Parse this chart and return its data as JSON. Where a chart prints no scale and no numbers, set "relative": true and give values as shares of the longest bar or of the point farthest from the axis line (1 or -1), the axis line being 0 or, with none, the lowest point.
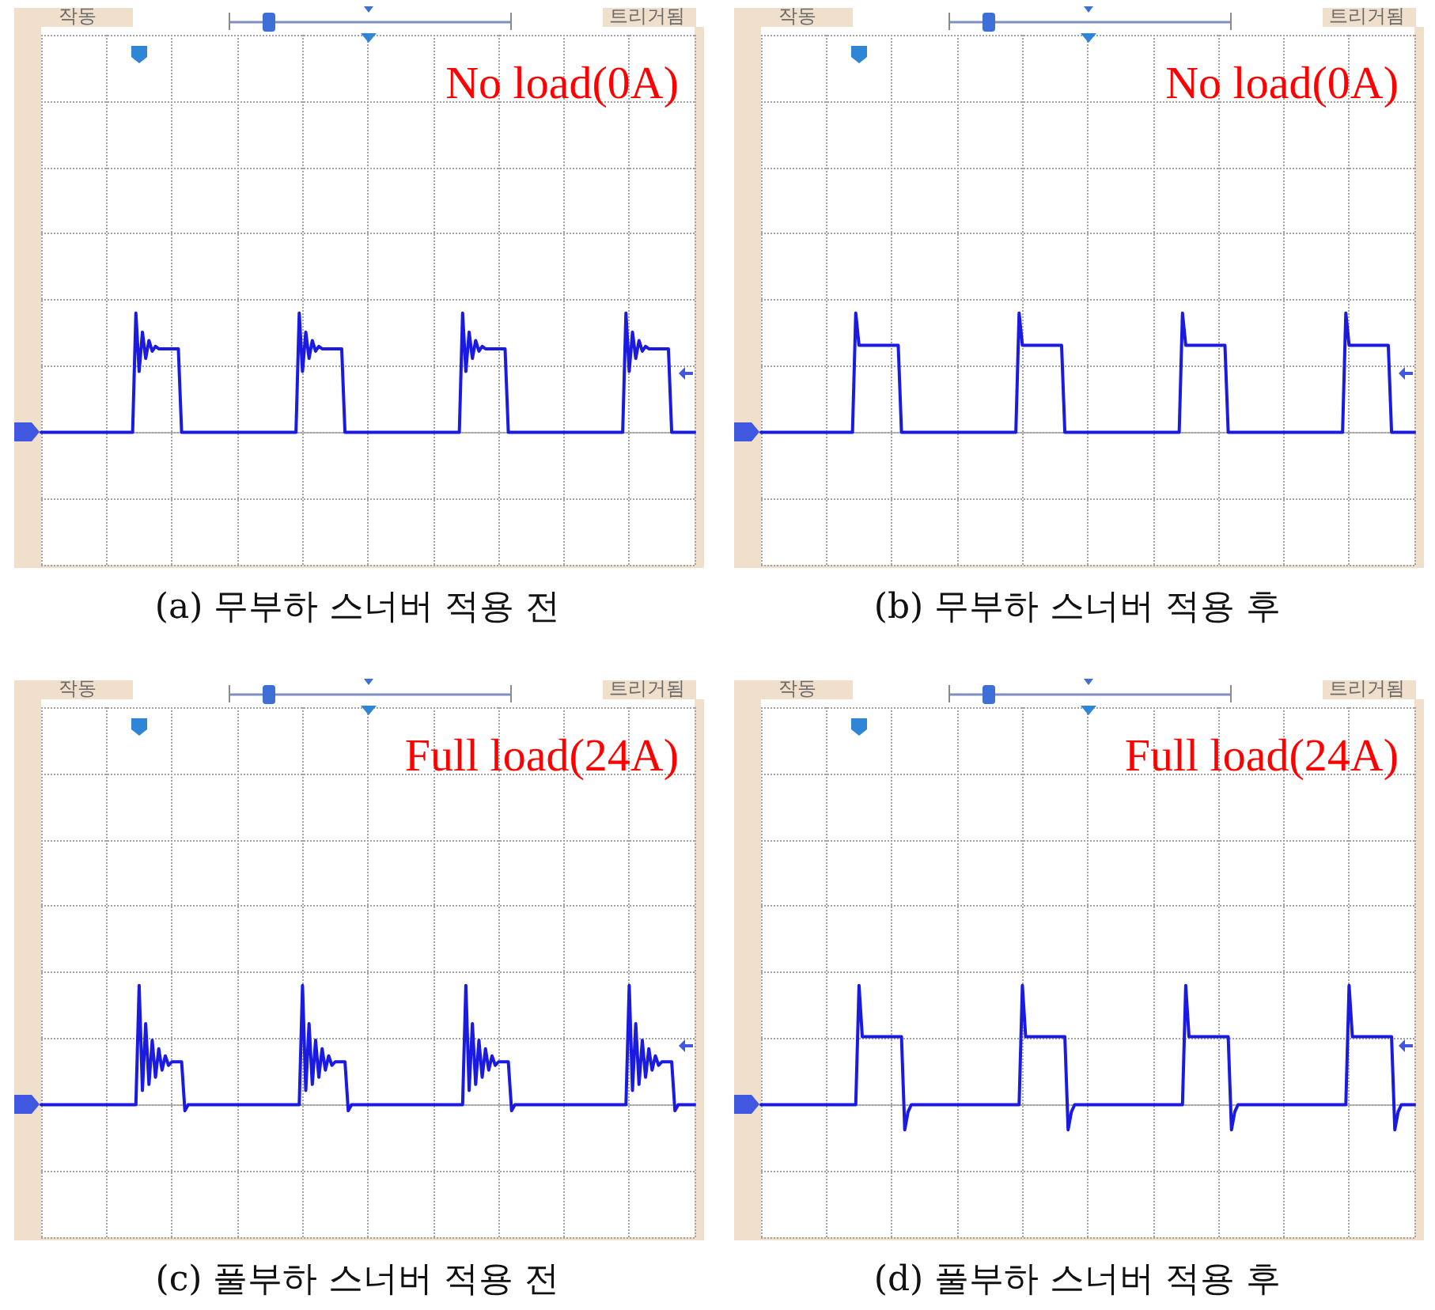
{
  "chart_data": [
    {
      "type": "line",
      "title": "(a) 무부하 스너버 적용 전",
      "annotations": [
        "작동",
        "트리거됨",
        "No load(0A)"
      ],
      "relative": true,
      "grid": true,
      "color": "#1a1ae0",
      "categories": [
        null,
        null,
        null,
        null,
        null,
        null,
        null,
        null,
        null,
        null,
        null,
        null,
        null,
        null,
        null,
        null,
        null,
        null,
        null,
        null,
        null,
        null,
        null,
        null,
        null,
        null,
        null,
        null,
        null,
        null,
        null,
        null,
        null,
        null,
        null,
        null,
        null,
        null,
        null,
        null,
        null,
        null,
        null,
        null,
        null,
        null,
        null,
        null,
        null,
        null,
        null,
        null,
        null,
        null,
        null,
        null,
        null,
        null,
        null,
        null,
        null,
        null,
        null,
        null,
        null,
        null,
        null,
        null,
        null,
        null,
        null,
        null,
        null,
        null,
        null,
        null,
        null,
        null,
        null,
        null,
        null,
        null,
        null,
        null,
        null,
        null,
        null,
        null,
        null,
        null,
        null,
        null,
        null,
        null,
        null,
        null,
        null,
        null,
        null,
        null,
        null,
        null,
        null,
        null,
        null,
        null,
        null,
        null,
        null,
        null,
        null,
        null,
        null,
        null,
        null,
        null,
        null,
        null,
        null,
        null,
        null,
        null,
        null,
        null,
        null,
        null,
        null,
        null,
        null,
        null,
        null,
        null,
        null,
        null,
        null,
        null,
        null,
        null,
        null,
        null,
        null,
        null,
        null,
        null,
        null,
        null,
        null,
        null,
        null,
        null,
        null,
        null,
        null,
        null,
        null,
        null,
        null,
        null,
        null,
        null,
        null,
        null,
        null,
        null,
        null,
        null,
        null,
        null,
        null,
        null,
        null,
        null,
        null,
        null,
        null,
        null,
        null,
        null,
        null,
        null,
        null,
        null,
        null,
        null,
        null,
        null,
        null,
        null,
        null,
        null,
        null,
        null,
        null,
        null,
        null,
        null,
        null,
        null,
        null,
        null,
        null
      ],
      "values": [
        0,
        0,
        0,
        0,
        0,
        0,
        0,
        0,
        0,
        0,
        0,
        0,
        0,
        0,
        0,
        0,
        0,
        0,
        0,
        0,
        0,
        0,
        0,
        0,
        0,
        0,
        0,
        0,
        0,
        1,
        0.51,
        0.84,
        0.62,
        0.77,
        0.68,
        0.72,
        0.7,
        0.7,
        0.7,
        0.7,
        0.7,
        0.7,
        0.7,
        0,
        0,
        0,
        0,
        0,
        0,
        0,
        0,
        0,
        0,
        0,
        0,
        0,
        0,
        0,
        0,
        0,
        0,
        0,
        0,
        0,
        0,
        0,
        0,
        0,
        0,
        0,
        0,
        0,
        0,
        0,
        0,
        0,
        0,
        0,
        0,
        1,
        0.51,
        0.84,
        0.62,
        0.77,
        0.68,
        0.72,
        0.7,
        0.7,
        0.7,
        0.7,
        0.7,
        0.7,
        0.7,
        0,
        0,
        0,
        0,
        0,
        0,
        0,
        0,
        0,
        0,
        0,
        0,
        0,
        0,
        0,
        0,
        0,
        0,
        0,
        0,
        0,
        0,
        0,
        0,
        0,
        0,
        0,
        0,
        0,
        0,
        0,
        0,
        0,
        0,
        0,
        0,
        1,
        0.51,
        0.84,
        0.62,
        0.77,
        0.68,
        0.72,
        0.7,
        0.7,
        0.7,
        0.7,
        0.7,
        0.7,
        0.7,
        0,
        0,
        0,
        0,
        0,
        0,
        0,
        0,
        0,
        0,
        0,
        0,
        0,
        0,
        0,
        0,
        0,
        0,
        0,
        0,
        0,
        0,
        0,
        0,
        0,
        0,
        0,
        0,
        0,
        0,
        0,
        0,
        0,
        0,
        0,
        0,
        1,
        0.51,
        0.84,
        0.62,
        0.77,
        0.68,
        0.72,
        0.7,
        0.7,
        0.7,
        0.7,
        0.7,
        0.7,
        0.7,
        0,
        0,
        0,
        0,
        0,
        0,
        0,
        0
      ]
    },
    {
      "type": "line",
      "title": "(b) 무부하 스너버 적용 후",
      "annotations": [
        "작동",
        "트리거됨",
        "No load(0A)"
      ],
      "relative": true,
      "grid": true,
      "color": "#1a1ae0",
      "categories": [
        null,
        null,
        null,
        null,
        null,
        null,
        null,
        null,
        null,
        null,
        null,
        null,
        null,
        null,
        null,
        null,
        null,
        null,
        null,
        null,
        null,
        null,
        null,
        null,
        null,
        null,
        null,
        null,
        null,
        null,
        null,
        null,
        null,
        null,
        null,
        null,
        null,
        null,
        null,
        null,
        null,
        null,
        null,
        null,
        null,
        null,
        null,
        null,
        null,
        null,
        null,
        null,
        null,
        null,
        null,
        null,
        null,
        null,
        null,
        null,
        null,
        null,
        null,
        null,
        null,
        null,
        null,
        null,
        null,
        null,
        null,
        null,
        null,
        null,
        null,
        null,
        null,
        null,
        null,
        null,
        null,
        null,
        null,
        null,
        null,
        null,
        null,
        null,
        null,
        null,
        null,
        null,
        null,
        null,
        null,
        null,
        null,
        null,
        null,
        null,
        null,
        null,
        null,
        null,
        null,
        null,
        null,
        null,
        null,
        null,
        null,
        null,
        null,
        null,
        null,
        null,
        null,
        null,
        null,
        null,
        null,
        null,
        null,
        null,
        null,
        null,
        null,
        null,
        null,
        null,
        null,
        null,
        null,
        null,
        null,
        null,
        null,
        null,
        null,
        null,
        null,
        null,
        null,
        null,
        null,
        null,
        null,
        null,
        null,
        null,
        null,
        null,
        null,
        null,
        null,
        null,
        null,
        null,
        null,
        null,
        null,
        null,
        null,
        null,
        null,
        null,
        null,
        null,
        null,
        null,
        null,
        null,
        null,
        null,
        null,
        null,
        null,
        null,
        null,
        null,
        null,
        null,
        null,
        null,
        null,
        null,
        null,
        null,
        null,
        null,
        null,
        null,
        null,
        null,
        null,
        null,
        null,
        null,
        null,
        null,
        null
      ],
      "values": [
        0,
        0,
        0,
        0,
        0,
        0,
        0,
        0,
        0,
        0,
        0,
        0,
        0,
        0,
        0,
        0,
        0,
        0,
        0,
        0,
        0,
        0,
        0,
        0,
        0,
        0,
        0,
        0,
        0,
        1,
        0.73,
        0.73,
        0.73,
        0.73,
        0.73,
        0.73,
        0.73,
        0.73,
        0.73,
        0.73,
        0.73,
        0.73,
        0.73,
        0,
        0,
        0,
        0,
        0,
        0,
        0,
        0,
        0,
        0,
        0,
        0,
        0,
        0,
        0,
        0,
        0,
        0,
        0,
        0,
        0,
        0,
        0,
        0,
        0,
        0,
        0,
        0,
        0,
        0,
        0,
        0,
        0,
        0,
        0,
        0,
        1,
        0.73,
        0.73,
        0.73,
        0.73,
        0.73,
        0.73,
        0.73,
        0.73,
        0.73,
        0.73,
        0.73,
        0.73,
        0.73,
        0,
        0,
        0,
        0,
        0,
        0,
        0,
        0,
        0,
        0,
        0,
        0,
        0,
        0,
        0,
        0,
        0,
        0,
        0,
        0,
        0,
        0,
        0,
        0,
        0,
        0,
        0,
        0,
        0,
        0,
        0,
        0,
        0,
        0,
        0,
        0,
        1,
        0.73,
        0.73,
        0.73,
        0.73,
        0.73,
        0.73,
        0.73,
        0.73,
        0.73,
        0.73,
        0.73,
        0.73,
        0.73,
        0,
        0,
        0,
        0,
        0,
        0,
        0,
        0,
        0,
        0,
        0,
        0,
        0,
        0,
        0,
        0,
        0,
        0,
        0,
        0,
        0,
        0,
        0,
        0,
        0,
        0,
        0,
        0,
        0,
        0,
        0,
        0,
        0,
        0,
        0,
        0,
        1,
        0.73,
        0.73,
        0.73,
        0.73,
        0.73,
        0.73,
        0.73,
        0.73,
        0.73,
        0.73,
        0.73,
        0.73,
        0.73,
        0,
        0,
        0,
        0,
        0,
        0,
        0,
        0
      ]
    },
    {
      "type": "line",
      "title": "(c) 풀부하 스너버 적용 전",
      "annotations": [
        "작동",
        "트리거됨",
        "Full load(24A)"
      ],
      "relative": true,
      "grid": true,
      "color": "#1a1ae0",
      "categories": [
        null,
        null,
        null,
        null,
        null,
        null,
        null,
        null,
        null,
        null,
        null,
        null,
        null,
        null,
        null,
        null,
        null,
        null,
        null,
        null,
        null,
        null,
        null,
        null,
        null,
        null,
        null,
        null,
        null,
        null,
        null,
        null,
        null,
        null,
        null,
        null,
        null,
        null,
        null,
        null,
        null,
        null,
        null,
        null,
        null,
        null,
        null,
        null,
        null,
        null,
        null,
        null,
        null,
        null,
        null,
        null,
        null,
        null,
        null,
        null,
        null,
        null,
        null,
        null,
        null,
        null,
        null,
        null,
        null,
        null,
        null,
        null,
        null,
        null,
        null,
        null,
        null,
        null,
        null,
        null,
        null,
        null,
        null,
        null,
        null,
        null,
        null,
        null,
        null,
        null,
        null,
        null,
        null,
        null,
        null,
        null,
        null,
        null,
        null,
        null,
        null,
        null,
        null,
        null,
        null,
        null,
        null,
        null,
        null,
        null,
        null,
        null,
        null,
        null,
        null,
        null,
        null,
        null,
        null,
        null,
        null,
        null,
        null,
        null,
        null,
        null,
        null,
        null,
        null,
        null,
        null,
        null,
        null,
        null,
        null,
        null,
        null,
        null,
        null,
        null,
        null,
        null,
        null,
        null,
        null,
        null,
        null,
        null,
        null,
        null,
        null,
        null,
        null,
        null,
        null,
        null,
        null,
        null,
        null,
        null,
        null,
        null,
        null,
        null,
        null,
        null,
        null,
        null,
        null,
        null,
        null,
        null,
        null,
        null,
        null,
        null,
        null,
        null,
        null,
        null,
        null,
        null,
        null,
        null,
        null,
        null,
        null,
        null,
        null,
        null,
        null,
        null,
        null,
        null,
        null,
        null,
        null,
        null,
        null,
        null,
        null
      ],
      "values": [
        0,
        0,
        0,
        0,
        0,
        0,
        0,
        0,
        0,
        0,
        0,
        0,
        0,
        0,
        0,
        0,
        0,
        0,
        0,
        0,
        0,
        0,
        0,
        0,
        0,
        0,
        0,
        0,
        0,
        0,
        1,
        0.12,
        0.68,
        0.17,
        0.54,
        0.23,
        0.47,
        0.29,
        0.41,
        0.33,
        0.36,
        0.36,
        0.36,
        0.36,
        -0.05,
        0,
        0,
        0,
        0,
        0,
        0,
        0,
        0,
        0,
        0,
        0,
        0,
        0,
        0,
        0,
        0,
        0,
        0,
        0,
        0,
        0,
        0,
        0,
        0,
        0,
        0,
        0,
        0,
        0,
        0,
        0,
        0,
        0,
        0,
        0,
        1,
        0.12,
        0.68,
        0.17,
        0.54,
        0.23,
        0.47,
        0.29,
        0.41,
        0.33,
        0.36,
        0.36,
        0.36,
        0.36,
        -0.05,
        0,
        0,
        0,
        0,
        0,
        0,
        0,
        0,
        0,
        0,
        0,
        0,
        0,
        0,
        0,
        0,
        0,
        0,
        0,
        0,
        0,
        0,
        0,
        0,
        0,
        0,
        0,
        0,
        0,
        0,
        0,
        0,
        0,
        0,
        0,
        1,
        0.12,
        0.68,
        0.17,
        0.54,
        0.23,
        0.47,
        0.29,
        0.41,
        0.33,
        0.36,
        0.36,
        0.36,
        0.36,
        -0.05,
        0,
        0,
        0,
        0,
        0,
        0,
        0,
        0,
        0,
        0,
        0,
        0,
        0,
        0,
        0,
        0,
        0,
        0,
        0,
        0,
        0,
        0,
        0,
        0,
        0,
        0,
        0,
        0,
        0,
        0,
        0,
        0,
        0,
        0,
        0,
        1,
        0.12,
        0.68,
        0.17,
        0.54,
        0.23,
        0.47,
        0.29,
        0.41,
        0.33,
        0.36,
        0.36,
        0.36,
        0.36,
        -0.05,
        0,
        0,
        0,
        0,
        0,
        0
      ]
    },
    {
      "type": "line",
      "title": "(d) 풀부하 스너버 적용 후",
      "annotations": [
        "작동",
        "트리거됨",
        "Full load(24A)"
      ],
      "relative": true,
      "grid": true,
      "color": "#1a1ae0",
      "categories": [
        null,
        null,
        null,
        null,
        null,
        null,
        null,
        null,
        null,
        null,
        null,
        null,
        null,
        null,
        null,
        null,
        null,
        null,
        null,
        null,
        null,
        null,
        null,
        null,
        null,
        null,
        null,
        null,
        null,
        null,
        null,
        null,
        null,
        null,
        null,
        null,
        null,
        null,
        null,
        null,
        null,
        null,
        null,
        null,
        null,
        null,
        null,
        null,
        null,
        null,
        null,
        null,
        null,
        null,
        null,
        null,
        null,
        null,
        null,
        null,
        null,
        null,
        null,
        null,
        null,
        null,
        null,
        null,
        null,
        null,
        null,
        null,
        null,
        null,
        null,
        null,
        null,
        null,
        null,
        null,
        null,
        null,
        null,
        null,
        null,
        null,
        null,
        null,
        null,
        null,
        null,
        null,
        null,
        null,
        null,
        null,
        null,
        null,
        null,
        null,
        null,
        null,
        null,
        null,
        null,
        null,
        null,
        null,
        null,
        null,
        null,
        null,
        null,
        null,
        null,
        null,
        null,
        null,
        null,
        null,
        null,
        null,
        null,
        null,
        null,
        null,
        null,
        null,
        null,
        null,
        null,
        null,
        null,
        null,
        null,
        null,
        null,
        null,
        null,
        null,
        null,
        null,
        null,
        null,
        null,
        null,
        null,
        null,
        null,
        null,
        null,
        null,
        null,
        null,
        null,
        null,
        null,
        null,
        null,
        null,
        null,
        null,
        null,
        null,
        null,
        null,
        null,
        null,
        null,
        null,
        null,
        null,
        null,
        null,
        null,
        null,
        null,
        null,
        null,
        null,
        null,
        null,
        null,
        null,
        null,
        null,
        null,
        null,
        null,
        null,
        null,
        null,
        null,
        null,
        null,
        null,
        null,
        null,
        null,
        null,
        null
      ],
      "values": [
        0,
        0,
        0,
        0,
        0,
        0,
        0,
        0,
        0,
        0,
        0,
        0,
        0,
        0,
        0,
        0,
        0,
        0,
        0,
        0,
        0,
        0,
        0,
        0,
        0,
        0,
        0,
        0,
        0,
        0,
        1,
        0.57,
        0.57,
        0.57,
        0.57,
        0.57,
        0.57,
        0.57,
        0.57,
        0.57,
        0.57,
        0.57,
        0.57,
        0.57,
        -0.21,
        -0.06,
        0,
        0,
        0,
        0,
        0,
        0,
        0,
        0,
        0,
        0,
        0,
        0,
        0,
        0,
        0,
        0,
        0,
        0,
        0,
        0,
        0,
        0,
        0,
        0,
        0,
        0,
        0,
        0,
        0,
        0,
        0,
        0,
        0,
        0,
        1,
        0.57,
        0.57,
        0.57,
        0.57,
        0.57,
        0.57,
        0.57,
        0.57,
        0.57,
        0.57,
        0.57,
        0.57,
        0.57,
        -0.21,
        -0.06,
        0,
        0,
        0,
        0,
        0,
        0,
        0,
        0,
        0,
        0,
        0,
        0,
        0,
        0,
        0,
        0,
        0,
        0,
        0,
        0,
        0,
        0,
        0,
        0,
        0,
        0,
        0,
        0,
        0,
        0,
        0,
        0,
        0,
        0,
        1,
        0.57,
        0.57,
        0.57,
        0.57,
        0.57,
        0.57,
        0.57,
        0.57,
        0.57,
        0.57,
        0.57,
        0.57,
        0.57,
        -0.21,
        -0.06,
        0,
        0,
        0,
        0,
        0,
        0,
        0,
        0,
        0,
        0,
        0,
        0,
        0,
        0,
        0,
        0,
        0,
        0,
        0,
        0,
        0,
        0,
        0,
        0,
        0,
        0,
        0,
        0,
        0,
        0,
        0,
        0,
        0,
        0,
        1,
        0.57,
        0.57,
        0.57,
        0.57,
        0.57,
        0.57,
        0.57,
        0.57,
        0.57,
        0.57,
        0.57,
        0.57,
        0.57,
        -0.21,
        -0.06,
        0,
        0,
        0,
        0,
        0
      ]
    }
  ]
}
